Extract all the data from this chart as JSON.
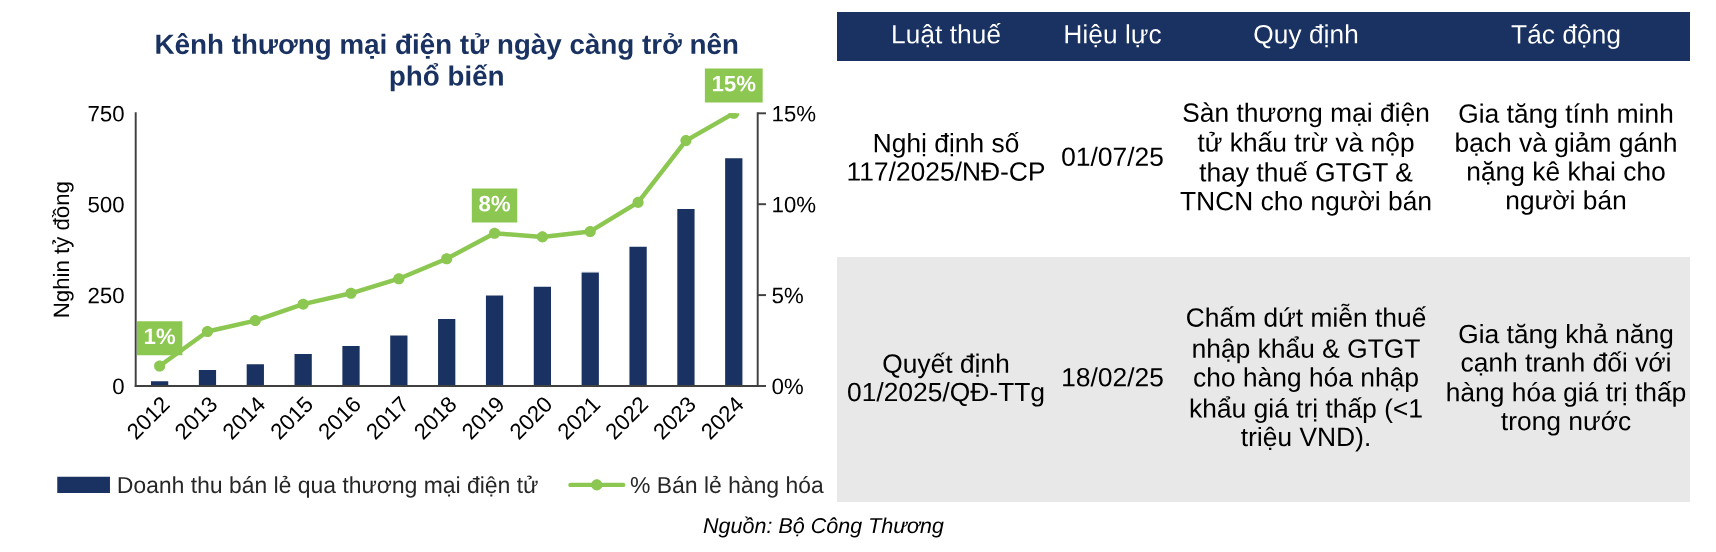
{
  "chart_data": [
    {
      "type": "bar",
      "title": "Kênh thương mại điện tử ngày càng trở nên phổ biến",
      "ylabel": "Nghin tỷ đồng",
      "categories": [
        "2012",
        "2013",
        "2014",
        "2015",
        "2016",
        "2017",
        "2018",
        "2019",
        "2020",
        "2021",
        "2022",
        "2023",
        "2024"
      ],
      "series": [
        {
          "name": "Doanh thu bán lẻ qua thương mại điện tử",
          "type": "bar",
          "color": "#1a3261",
          "values": [
            15,
            46,
            62,
            90,
            112,
            141,
            186,
            251,
            275,
            314,
            385,
            489,
            628
          ]
        },
        {
          "name": "% Bán lẻ hàng hóa",
          "type": "line",
          "axis": "y2",
          "color": "#8cc751",
          "values": [
            1.1,
            3.0,
            3.6,
            4.5,
            5.1,
            5.9,
            7.0,
            8.4,
            8.2,
            8.5,
            10.1,
            13.5,
            15.0
          ],
          "value_labels": [
            "1%",
            null,
            null,
            null,
            null,
            null,
            null,
            "8%",
            null,
            null,
            null,
            null,
            "15%"
          ]
        }
      ],
      "ylim": [
        0,
        750
      ],
      "yticks": [
        0,
        250,
        500,
        750
      ],
      "y2lim": [
        0,
        15
      ],
      "y2ticks": [
        {
          "value": 0,
          "label": "0%"
        },
        {
          "value": 5,
          "label": "5%"
        },
        {
          "value": 10,
          "label": "10%"
        },
        {
          "value": 15,
          "label": "15%"
        }
      ],
      "marker": "circle",
      "legend": "bottom",
      "annotations": [
        "Nguồn: Bộ Công Thương"
      ]
    },
    {
      "type": "other",
      "categories": [
        "Luật thuế",
        "Hiệu lực",
        "Quy định",
        "Tác động"
      ],
      "annotations": [
        "Nghị định số 117/2025/NĐ-CP",
        "01/07/25",
        "Sàn thương mại điện tử khấu trừ và nộp thay thuế GTGT & TNCN cho người bán",
        "Gia tăng tính minh bạch và giảm gánh nặng kê khai cho người bán",
        "Quyết định 01/2025/QĐ-TTg",
        "18/02/25",
        "Chấm dứt miễn thuế nhập khẩu & GTGT cho hàng hóa nhập khẩu giá trị thấp (<1 triệu VND).",
        "Gia tăng khả năng cạnh tranh đối với hàng hóa giá trị thấp trong nước"
      ]
    }
  ]
}
